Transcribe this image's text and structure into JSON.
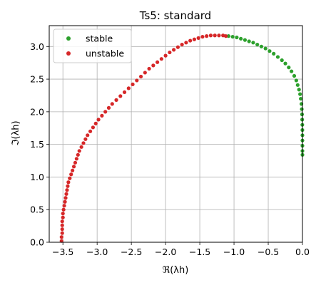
{
  "chart_data": {
    "type": "scatter",
    "title": "Ts5: standard",
    "xlabel": "ℜ(λh)",
    "ylabel": "ℑ(λh)",
    "xlim": [
      -3.7,
      0.0
    ],
    "ylim": [
      0.0,
      3.32
    ],
    "xticks": [
      -3.5,
      -3.0,
      -2.5,
      -2.0,
      -1.5,
      -1.0,
      -0.5,
      0.0
    ],
    "yticks": [
      0.0,
      0.5,
      1.0,
      1.5,
      2.0,
      2.5,
      3.0
    ],
    "xtick_labels": [
      "−3.5",
      "−3.0",
      "−2.5",
      "−2.0",
      "−1.5",
      "−1.0",
      "−0.5",
      "0.0"
    ],
    "ytick_labels": [
      "0.0",
      "0.5",
      "1.0",
      "1.5",
      "2.0",
      "2.5",
      "3.0"
    ],
    "grid": true,
    "legend_position": "top-left",
    "series": [
      {
        "name": "stable",
        "color": "#2ca02c",
        "points": [
          [
            -1.08,
            3.16
          ],
          [
            -1.02,
            3.15
          ],
          [
            -0.96,
            3.14
          ],
          [
            -0.9,
            3.12
          ],
          [
            -0.84,
            3.1
          ],
          [
            -0.78,
            3.08
          ],
          [
            -0.72,
            3.06
          ],
          [
            -0.66,
            3.03
          ],
          [
            -0.6,
            3.0
          ],
          [
            -0.54,
            2.97
          ],
          [
            -0.48,
            2.93
          ],
          [
            -0.42,
            2.89
          ],
          [
            -0.36,
            2.84
          ],
          [
            -0.3,
            2.79
          ],
          [
            -0.25,
            2.74
          ],
          [
            -0.2,
            2.68
          ],
          [
            -0.16,
            2.62
          ],
          [
            -0.12,
            2.55
          ],
          [
            -0.09,
            2.48
          ],
          [
            -0.07,
            2.41
          ],
          [
            -0.05,
            2.34
          ],
          [
            -0.035,
            2.27
          ],
          [
            -0.025,
            2.2
          ],
          [
            -0.015,
            2.12
          ],
          [
            -0.01,
            2.04
          ],
          [
            -0.006,
            1.96
          ],
          [
            -0.004,
            1.88
          ],
          [
            -0.002,
            1.8
          ],
          [
            -0.001,
            1.72
          ],
          [
            -0.0005,
            1.64
          ],
          [
            -0.0003,
            1.56
          ],
          [
            -0.0002,
            1.48
          ],
          [
            -0.0001,
            1.4
          ],
          [
            -5e-05,
            1.34
          ]
        ]
      },
      {
        "name": "unstable",
        "color": "#d62728",
        "points": [
          [
            -3.52,
            0.02
          ],
          [
            -3.52,
            0.08
          ],
          [
            -3.51,
            0.14
          ],
          [
            -3.51,
            0.2
          ],
          [
            -3.51,
            0.26
          ],
          [
            -3.51,
            0.32
          ],
          [
            -3.5,
            0.38
          ],
          [
            -3.5,
            0.44
          ],
          [
            -3.49,
            0.5
          ],
          [
            -3.48,
            0.56
          ],
          [
            -3.47,
            0.62
          ],
          [
            -3.46,
            0.68
          ],
          [
            -3.45,
            0.74
          ],
          [
            -3.44,
            0.8
          ],
          [
            -3.43,
            0.86
          ],
          [
            -3.42,
            0.92
          ],
          [
            -3.4,
            0.98
          ],
          [
            -3.38,
            1.04
          ],
          [
            -3.36,
            1.1
          ],
          [
            -3.34,
            1.16
          ],
          [
            -3.32,
            1.22
          ],
          [
            -3.3,
            1.28
          ],
          [
            -3.28,
            1.34
          ],
          [
            -3.26,
            1.4
          ],
          [
            -3.23,
            1.46
          ],
          [
            -3.2,
            1.52
          ],
          [
            -3.17,
            1.58
          ],
          [
            -3.14,
            1.64
          ],
          [
            -3.1,
            1.7
          ],
          [
            -3.06,
            1.76
          ],
          [
            -3.02,
            1.82
          ],
          [
            -2.98,
            1.88
          ],
          [
            -2.93,
            1.94
          ],
          [
            -2.88,
            2.0
          ],
          [
            -2.83,
            2.06
          ],
          [
            -2.78,
            2.12
          ],
          [
            -2.72,
            2.18
          ],
          [
            -2.66,
            2.24
          ],
          [
            -2.6,
            2.3
          ],
          [
            -2.54,
            2.36
          ],
          [
            -2.48,
            2.42
          ],
          [
            -2.42,
            2.48
          ],
          [
            -2.36,
            2.54
          ],
          [
            -2.3,
            2.6
          ],
          [
            -2.24,
            2.66
          ],
          [
            -2.18,
            2.71
          ],
          [
            -2.12,
            2.76
          ],
          [
            -2.06,
            2.81
          ],
          [
            -2.0,
            2.86
          ],
          [
            -1.94,
            2.91
          ],
          [
            -1.88,
            2.95
          ],
          [
            -1.82,
            2.99
          ],
          [
            -1.76,
            3.03
          ],
          [
            -1.7,
            3.06
          ],
          [
            -1.64,
            3.09
          ],
          [
            -1.58,
            3.11
          ],
          [
            -1.52,
            3.13
          ],
          [
            -1.46,
            3.15
          ],
          [
            -1.4,
            3.16
          ],
          [
            -1.34,
            3.17
          ],
          [
            -1.28,
            3.17
          ],
          [
            -1.22,
            3.17
          ],
          [
            -1.16,
            3.17
          ],
          [
            -1.12,
            3.16
          ]
        ]
      }
    ]
  }
}
